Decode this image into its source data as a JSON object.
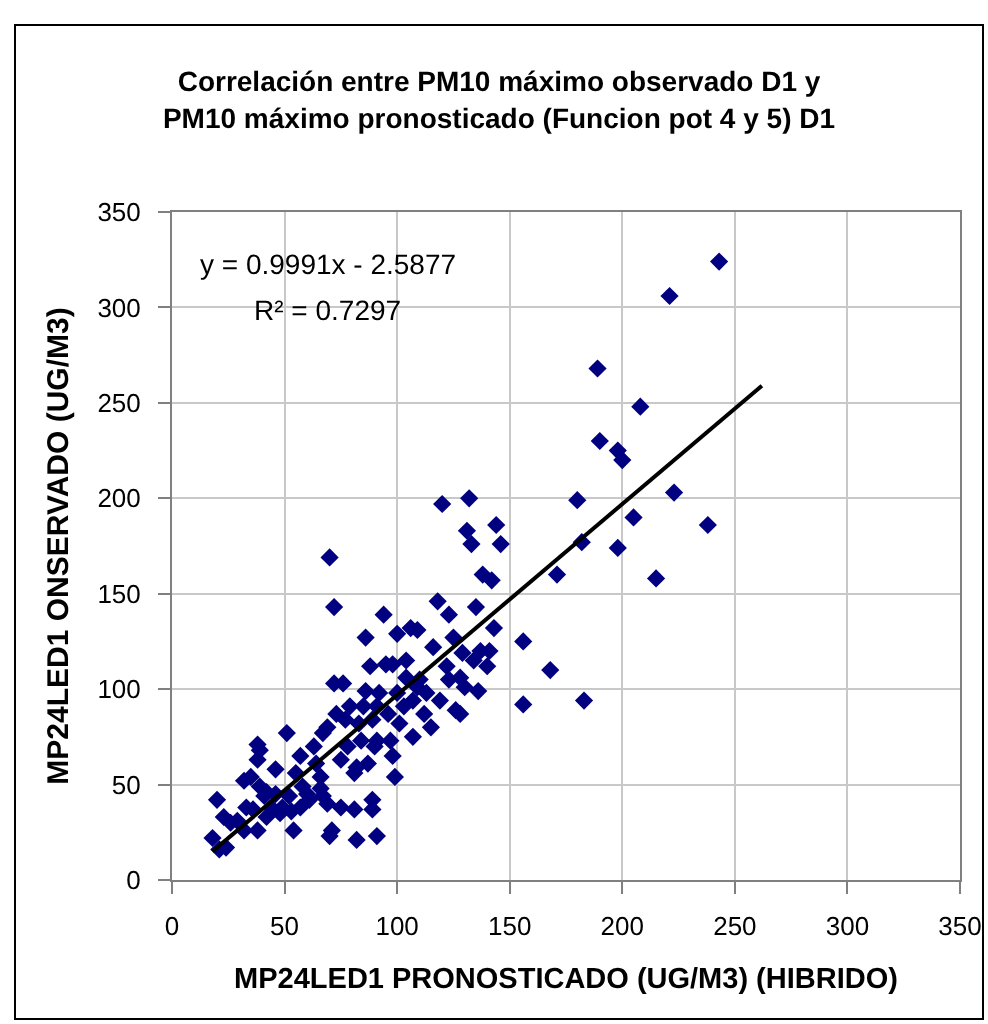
{
  "chart_data": {
    "type": "scatter",
    "title": "Correlación entre PM10 máximo observado D1 y PM10 máximo pronosticado (Funcion pot 4 y 5) D1",
    "xlabel": "MP24LED1 PRONOSTICADO (UG/M3) (HIBRIDO)",
    "ylabel": "MP24LED1 ONSERVADO (UG/M3)",
    "annotations": [
      "y = 0.9991x - 2.5877",
      "R² = 0.7297"
    ],
    "xlim": [
      0,
      350
    ],
    "ylim": [
      0,
      350
    ],
    "xticks": [
      0,
      50,
      100,
      150,
      200,
      250,
      300,
      350
    ],
    "yticks": [
      0,
      50,
      100,
      150,
      200,
      250,
      300,
      350
    ],
    "grid": true,
    "legend": false,
    "series": [
      {
        "color": "#000080",
        "marker": "diamond",
        "x": [
          20,
          18,
          21,
          24,
          23,
          26,
          29,
          32,
          32,
          35,
          36,
          38,
          38,
          39,
          38,
          39,
          41,
          42,
          44,
          46,
          46,
          48,
          51,
          49,
          52,
          54,
          55,
          57,
          57,
          58,
          60,
          61,
          63,
          64,
          66,
          67,
          67,
          69,
          69,
          70,
          70,
          71,
          72,
          72,
          73,
          75,
          75,
          76,
          77,
          78,
          79,
          81,
          81,
          82,
          83,
          82,
          84,
          85,
          86,
          86,
          87,
          88,
          89,
          89,
          89,
          90,
          91,
          91,
          91,
          92,
          94,
          95,
          96,
          97,
          98,
          98,
          99,
          100,
          100,
          101,
          103,
          104,
          104,
          106,
          107,
          107,
          109,
          109,
          110,
          112,
          113,
          115,
          116,
          118,
          119,
          120,
          122,
          123,
          123,
          125,
          126,
          128,
          128,
          129,
          130,
          131,
          132,
          133,
          134,
          135,
          136,
          137,
          138,
          140,
          141,
          142,
          143,
          144,
          146,
          156,
          156,
          168,
          171,
          243,
          221,
          189,
          208,
          190,
          198,
          200,
          223,
          180,
          205,
          238,
          182,
          198,
          215,
          183,
          33,
          42,
          53,
          66
        ],
        "values": [
          42,
          22,
          16,
          17,
          33,
          30,
          31,
          26,
          52,
          54,
          37,
          26,
          71,
          68,
          63,
          49,
          44,
          33,
          38,
          58,
          45,
          35,
          77,
          38,
          44,
          26,
          56,
          65,
          38,
          49,
          45,
          42,
          70,
          61,
          54,
          44,
          77,
          80,
          40,
          23,
          169,
          26,
          143,
          103,
          87,
          63,
          38,
          103,
          84,
          70,
          91,
          56,
          37,
          59,
          82,
          21,
          73,
          91,
          127,
          99,
          61,
          112,
          37,
          84,
          42,
          70,
          73,
          23,
          91,
          98,
          139,
          113,
          87,
          73,
          113,
          65,
          54,
          129,
          98,
          82,
          91,
          115,
          106,
          132,
          75,
          94,
          131,
          101,
          105,
          87,
          98,
          80,
          122,
          146,
          94,
          197,
          112,
          139,
          105,
          127,
          89,
          87,
          106,
          119,
          101,
          183,
          200,
          176,
          115,
          143,
          99,
          120,
          160,
          112,
          120,
          157,
          132,
          186,
          176,
          125,
          92,
          110,
          160,
          324,
          306,
          268,
          248,
          230,
          225,
          220,
          203,
          199,
          190,
          186,
          177,
          174,
          158,
          94,
          38,
          46,
          36,
          48
        ]
      },
      {
        "type": "line",
        "color": "#000000",
        "marker": "none",
        "x": [
          18,
          262
        ],
        "values": [
          15,
          259
        ]
      }
    ]
  }
}
